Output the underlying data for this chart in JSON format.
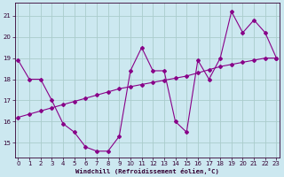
{
  "xlabel": "Windchill (Refroidissement éolien,°C)",
  "bg_color": "#cce8f0",
  "grid_color": "#aacccc",
  "line_color": "#880088",
  "x_hours": [
    0,
    1,
    2,
    3,
    4,
    5,
    6,
    7,
    8,
    9,
    10,
    11,
    12,
    13,
    14,
    15,
    16,
    17,
    18,
    19,
    20,
    21,
    22,
    23
  ],
  "curve1_y": [
    18.9,
    18.0,
    18.0,
    17.0,
    15.9,
    15.5,
    14.8,
    14.6,
    14.6,
    15.3,
    18.4,
    19.5,
    18.4,
    18.4,
    16.0,
    15.5,
    18.9,
    18.0,
    19.0,
    21.2,
    20.2,
    20.8,
    20.2,
    19.0
  ],
  "curve2_y": [
    16.2,
    16.35,
    16.5,
    16.65,
    16.8,
    16.95,
    17.1,
    17.25,
    17.4,
    17.55,
    17.65,
    17.75,
    17.85,
    17.95,
    18.05,
    18.15,
    18.3,
    18.45,
    18.6,
    18.7,
    18.8,
    18.9,
    19.0,
    19.0
  ],
  "ylim": [
    14.3,
    21.6
  ],
  "yticks": [
    15,
    16,
    17,
    18,
    19,
    20,
    21
  ],
  "xlim": [
    -0.3,
    23.3
  ],
  "xticks": [
    0,
    1,
    2,
    3,
    4,
    5,
    6,
    7,
    8,
    9,
    10,
    11,
    12,
    13,
    14,
    15,
    16,
    17,
    18,
    19,
    20,
    21,
    22,
    23
  ]
}
